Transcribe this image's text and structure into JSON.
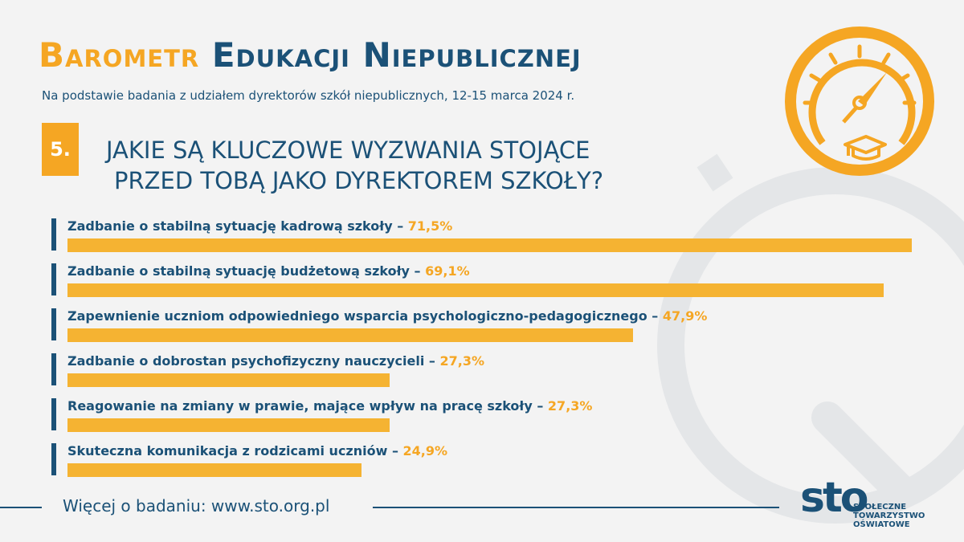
{
  "header": {
    "title_part1": "Barometr",
    "title_part2": "Edukacji Niepublicznej",
    "subtitle": "Na podstawie badania z udziałem dyrektorów szkół niepublicznych, 12-15 marca 2024 r."
  },
  "question": {
    "number": "5.",
    "line1": "JAKIE SĄ KLUCZOWE WYZWANIA STOJĄCE",
    "line2": "PRZED TOBĄ JAKO DYREKTOREM SZKOŁY?"
  },
  "chart_data": {
    "type": "bar",
    "orientation": "horizontal",
    "categories": [
      "Zadbanie o stabilną sytuację kadrową szkoły",
      "Zadbanie o stabilną sytuację budżetową szkoły",
      "Zapewnienie uczniom odpowiedniego wsparcia psychologiczno-pedagogicznego",
      "Zadbanie o dobrostan psychofizyczny nauczycieli",
      "Reagowanie na zmiany w prawie, mające wpływ na pracę szkoły",
      "Skuteczna komunikacja z rodzicami uczniów"
    ],
    "values": [
      71.5,
      69.1,
      47.9,
      27.3,
      27.3,
      24.9
    ],
    "value_labels": [
      "71,5%",
      "69,1%",
      "47,9%",
      "27,3%",
      "27,3%",
      "24,9%"
    ],
    "xlim": [
      0,
      71.5
    ],
    "grid": false,
    "bar_color": "#f5b332"
  },
  "footer": {
    "text": "Więcej o badaniu: www.sto.org.pl"
  },
  "logo": {
    "mark": "sto",
    "line1": "SPOŁECZNE",
    "line2": "TOWARZYSTWO",
    "line3": "OŚWIATOWE"
  },
  "icons": {
    "gauge": "speedometer-graduation-cap-icon"
  },
  "colors": {
    "accent": "#f5a623",
    "primary": "#1b5177",
    "background": "#f3f3f3"
  }
}
